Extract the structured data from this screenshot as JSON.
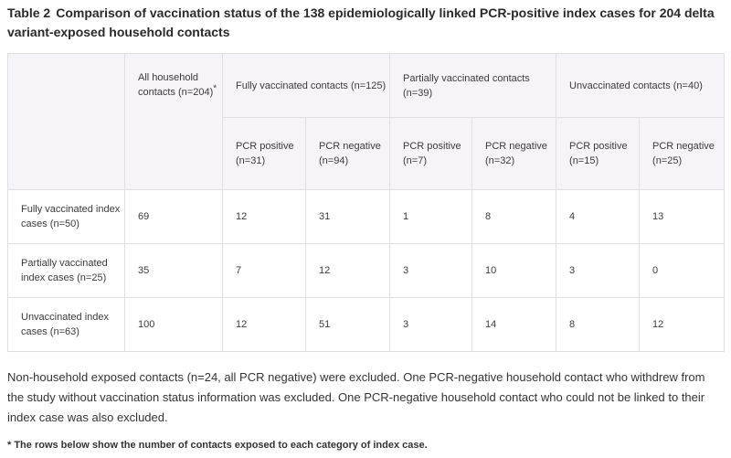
{
  "caption": {
    "label": "Table 2",
    "title": "Comparison of vaccination status of the 138 epidemiologically linked PCR-positive index cases for 204 delta variant-exposed household contacts"
  },
  "table": {
    "header_all_contacts": "All household contacts (n=204)",
    "header_all_contacts_marker": "*",
    "groups": [
      {
        "label": "Fully vaccinated contacts (n=125)",
        "pos": "PCR positive (n=31)",
        "neg": "PCR negative (n=94)"
      },
      {
        "label": "Partially vaccinated contacts (n=39)",
        "pos": "PCR positive (n=7)",
        "neg": "PCR negative (n=32)"
      },
      {
        "label": "Unvaccinated contacts (n=40)",
        "pos": "PCR positive (n=15)",
        "neg": "PCR negative (n=25)"
      }
    ],
    "rows": [
      {
        "label": "Fully vaccinated index cases (n=50)",
        "cells": [
          "69",
          "12",
          "31",
          "1",
          "8",
          "4",
          "13"
        ]
      },
      {
        "label": "Partially vaccinated index cases (n=25)",
        "cells": [
          "35",
          "7",
          "12",
          "3",
          "10",
          "3",
          "0"
        ]
      },
      {
        "label": "Unvaccinated index cases (n=63)",
        "cells": [
          "100",
          "12",
          "51",
          "3",
          "14",
          "8",
          "12"
        ]
      }
    ]
  },
  "note": "Non-household exposed contacts (n=24, all PCR negative) were excluded. One PCR-negative household contact who withdrew from the study without vaccination status information was excluded. One PCR-negative household contact who could not be linked to their index case was also excluded.",
  "footnote": "* The rows below show the number of contacts exposed to each category of index case.",
  "colors": {
    "header_bg": "#f6f4f8",
    "border": "#dedee3",
    "text": "#333333"
  }
}
